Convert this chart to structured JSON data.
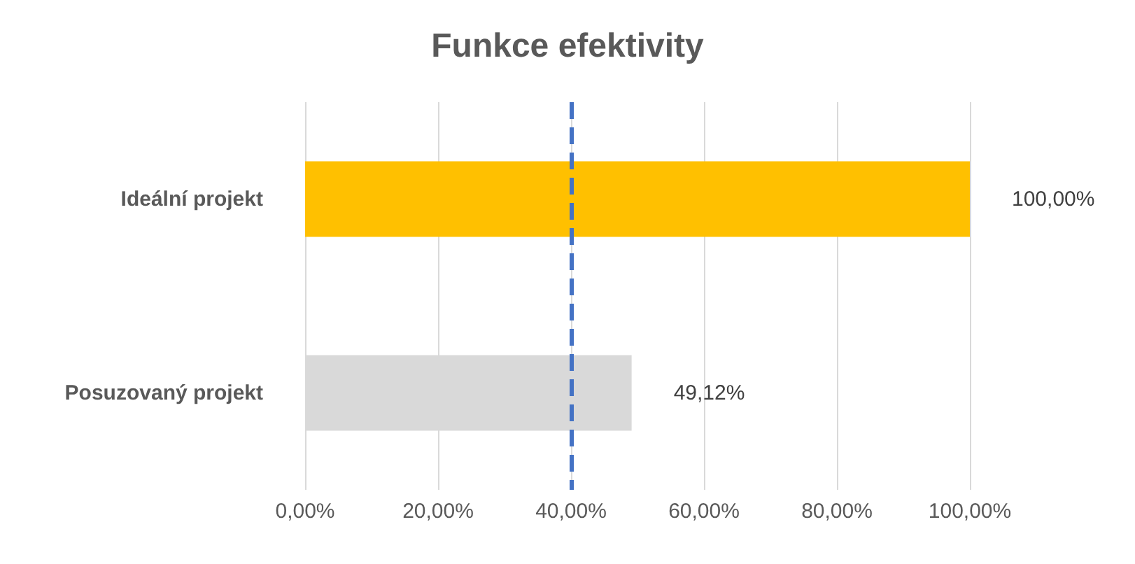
{
  "chart_data": {
    "type": "bar",
    "orientation": "horizontal",
    "title": "Funkce efektivity",
    "categories": [
      "Ideální projekt",
      "Posuzovaný projekt"
    ],
    "values": [
      100,
      49.12
    ],
    "colors": [
      "#ffc000",
      "#d9d9d9"
    ],
    "value_labels": [
      "100,00%",
      "49,12%"
    ],
    "xlim": [
      0,
      100
    ],
    "xticks": [
      {
        "value": 0,
        "label": "0,00%"
      },
      {
        "value": 20,
        "label": "20,00%"
      },
      {
        "value": 40,
        "label": "40,00%"
      },
      {
        "value": 60,
        "label": "60,00%"
      },
      {
        "value": 80,
        "label": "80,00%"
      },
      {
        "value": 100,
        "label": "100,00%"
      }
    ],
    "grid": "x",
    "ref_lines": [
      {
        "axis": "x",
        "value": 40,
        "color": "#4472c4",
        "line_style": "dashed"
      }
    ]
  }
}
